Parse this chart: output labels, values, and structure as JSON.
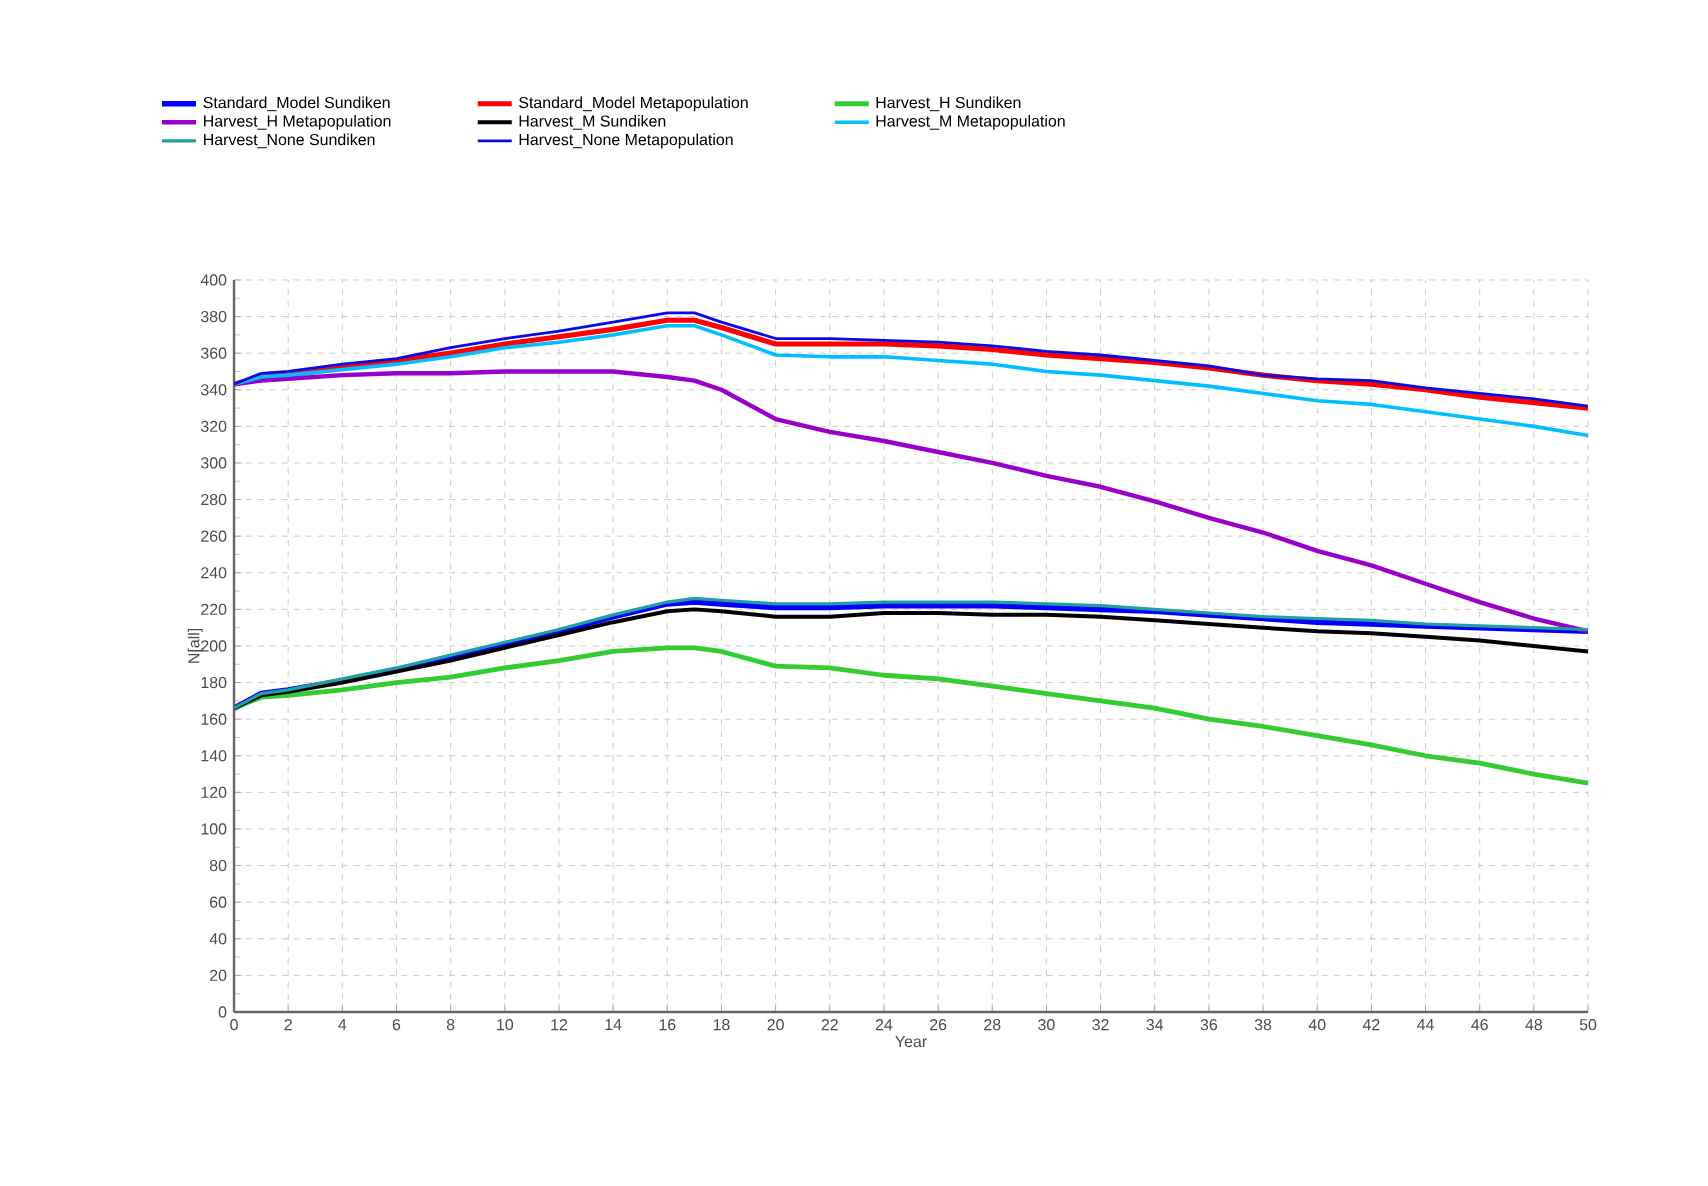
{
  "chart_data": {
    "type": "line",
    "xlabel": "Year",
    "ylabel": "N[all]",
    "x": [
      0,
      1,
      2,
      4,
      6,
      8,
      10,
      12,
      14,
      16,
      17,
      18,
      20,
      22,
      24,
      26,
      28,
      30,
      32,
      34,
      36,
      38,
      40,
      42,
      44,
      46,
      48,
      50
    ],
    "xlim": [
      0,
      50
    ],
    "ylim": [
      0,
      400
    ],
    "xticks": [
      0,
      2,
      4,
      6,
      8,
      10,
      12,
      14,
      16,
      18,
      20,
      22,
      24,
      26,
      28,
      30,
      32,
      34,
      36,
      38,
      40,
      42,
      44,
      46,
      48,
      50
    ],
    "yticks": [
      0,
      20,
      40,
      60,
      80,
      100,
      120,
      140,
      160,
      180,
      200,
      220,
      240,
      260,
      280,
      300,
      320,
      340,
      360,
      380,
      400
    ],
    "grid": true,
    "legend": "top",
    "marker": "none",
    "line_style": "solid",
    "series": [
      {
        "name": "Standard_Model Sundiken",
        "color": "#0000ff",
        "values": [
          166,
          174,
          176,
          181,
          187,
          194,
          201,
          208,
          216,
          223,
          224,
          223,
          221,
          221,
          222,
          222,
          222,
          221,
          220,
          219,
          217,
          215,
          213,
          212,
          211,
          210,
          209,
          208
        ]
      },
      {
        "name": "Standard_Model Metapopulation",
        "color": "#ff0000",
        "values": [
          343,
          347,
          348,
          352,
          356,
          360,
          365,
          369,
          373,
          378,
          378,
          374,
          365,
          365,
          365,
          364,
          362,
          359,
          357,
          355,
          352,
          348,
          345,
          343,
          340,
          336,
          333,
          330
        ]
      },
      {
        "name": "Harvest_H Sundiken",
        "color": "#33cc33",
        "values": [
          166,
          172,
          173,
          176,
          180,
          183,
          188,
          192,
          197,
          199,
          199,
          197,
          189,
          188,
          184,
          182,
          178,
          174,
          170,
          166,
          160,
          156,
          151,
          146,
          140,
          136,
          130,
          125
        ]
      },
      {
        "name": "Harvest_H Metapopulation",
        "color": "#9900cc",
        "values": [
          343,
          345,
          346,
          348,
          349,
          349,
          350,
          350,
          350,
          347,
          345,
          340,
          324,
          317,
          312,
          306,
          300,
          293,
          287,
          279,
          270,
          262,
          252,
          244,
          234,
          224,
          215,
          208
        ]
      },
      {
        "name": "Harvest_M Sundiken",
        "color": "#000000",
        "values": [
          166,
          173,
          175,
          180,
          186,
          192,
          199,
          206,
          213,
          219,
          220,
          219,
          216,
          216,
          218,
          218,
          217,
          217,
          216,
          214,
          212,
          210,
          208,
          207,
          205,
          203,
          200,
          197
        ]
      },
      {
        "name": "Harvest_M Metapopulation",
        "color": "#00bfff",
        "values": [
          343,
          347,
          348,
          351,
          354,
          358,
          363,
          366,
          370,
          375,
          375,
          370,
          359,
          358,
          358,
          356,
          354,
          350,
          348,
          345,
          342,
          338,
          334,
          332,
          328,
          324,
          320,
          315
        ]
      },
      {
        "name": "Harvest_None Sundiken",
        "color": "#20a0a0",
        "values": [
          166,
          174,
          176,
          182,
          188,
          195,
          202,
          209,
          217,
          224,
          226,
          225,
          223,
          223,
          224,
          224,
          224,
          223,
          222,
          220,
          218,
          216,
          215,
          214,
          212,
          211,
          210,
          209
        ]
      },
      {
        "name": "Harvest_None Metapopulation",
        "color": "#0a0ae6",
        "values": [
          343,
          349,
          350,
          354,
          357,
          363,
          368,
          372,
          377,
          382,
          382,
          377,
          368,
          368,
          367,
          366,
          364,
          361,
          359,
          356,
          353,
          348,
          346,
          345,
          341,
          338,
          335,
          331
        ]
      }
    ]
  }
}
